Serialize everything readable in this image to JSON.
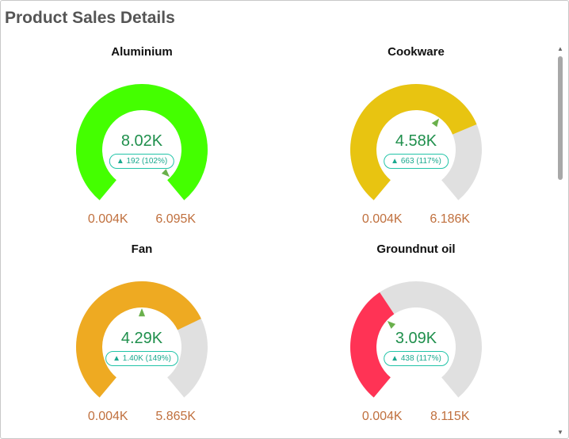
{
  "panel": {
    "title": "Product Sales Details"
  },
  "gauges": [
    {
      "name": "Aluminium",
      "value_label": "8.02K",
      "delta_label": "▲ 192 (102%)",
      "min_label": "0.004K",
      "max_label": "6.095K",
      "fill_fraction": 1.0,
      "target_fraction": 0.98,
      "color": "#44ff00"
    },
    {
      "name": "Cookware",
      "value_label": "4.58K",
      "delta_label": "▲ 663 (117%)",
      "min_label": "0.004K",
      "max_label": "6.186K",
      "fill_fraction": 0.74,
      "target_fraction": 0.63,
      "color": "#e8c411"
    },
    {
      "name": "Fan",
      "value_label": "4.29K",
      "delta_label": "▲ 1.40K (149%)",
      "min_label": "0.004K",
      "max_label": "5.865K",
      "fill_fraction": 0.73,
      "target_fraction": 0.5,
      "color": "#eeaa22"
    },
    {
      "name": "Groundnut oil",
      "value_label": "3.09K",
      "delta_label": "▲ 438 (117%)",
      "min_label": "0.004K",
      "max_label": "8.115K",
      "fill_fraction": 0.38,
      "target_fraction": 0.33,
      "color": "#ff3355"
    }
  ],
  "colors": {
    "track": "#e0e0e0",
    "target_marker": "#6ab04c"
  },
  "scrollbar": {
    "up_icon": "chevron-up-icon",
    "down_icon": "chevron-down-icon"
  }
}
